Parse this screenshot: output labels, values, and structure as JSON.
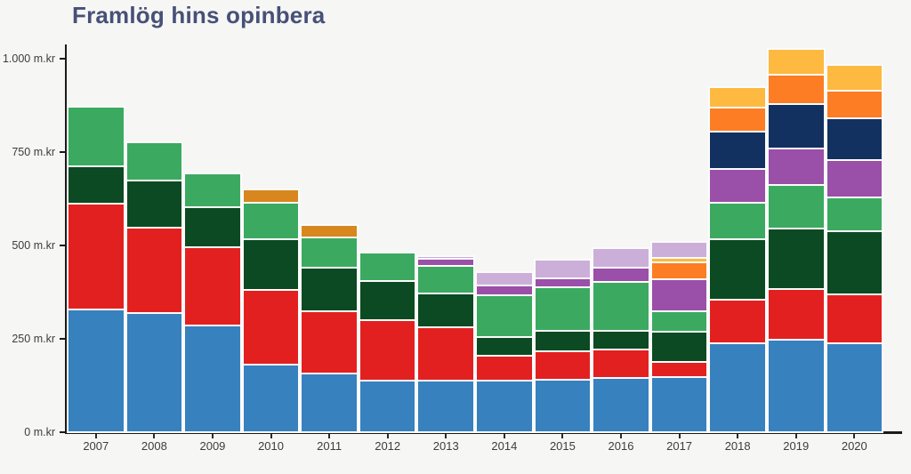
{
  "page": {
    "background_color": "#F6F6F5",
    "axis_color": "#1A1A1A",
    "tick_label_color": "#3C3C3C",
    "title_color": "#475077"
  },
  "chart_data": {
    "type": "bar",
    "stacked": true,
    "title": "Framlög hins opinbera",
    "unit": "m.kr",
    "grid": false,
    "legend_position": "none",
    "xlabel": "",
    "ylabel": "",
    "ylim": [
      0,
      1062
    ],
    "categories": [
      "2007",
      "2008",
      "2009",
      "2010",
      "2011",
      "2012",
      "2013",
      "2014",
      "2015",
      "2016",
      "2017",
      "2018",
      "2019",
      "2020"
    ],
    "y_axis": {
      "ticks": [
        {
          "value": 0,
          "label": "0 m.kr"
        },
        {
          "value": 250,
          "label": "250 m.kr"
        },
        {
          "value": 500,
          "label": "500 m.kr"
        },
        {
          "value": 750,
          "label": "750 m.kr"
        },
        {
          "value": 1000,
          "label": "1.000 m.kr"
        }
      ]
    },
    "series": [
      {
        "name": "blue",
        "color": "#3781BE",
        "values": [
          328,
          318,
          286,
          181,
          157,
          139,
          138,
          139,
          141,
          145,
          148,
          238,
          248,
          238
        ]
      },
      {
        "name": "red",
        "color": "#E32020",
        "values": [
          284,
          230,
          210,
          201,
          168,
          161,
          144,
          66,
          76,
          76,
          41,
          117,
          135,
          131
        ]
      },
      {
        "name": "dark-green",
        "color": "#0B4A22",
        "values": [
          99,
          126,
          107,
          134,
          115,
          105,
          89,
          51,
          55,
          51,
          81,
          161,
          163,
          169
        ]
      },
      {
        "name": "green",
        "color": "#3BAA60",
        "values": [
          160,
          102,
          90,
          99,
          82,
          75,
          73,
          111,
          117,
          130,
          55,
          98,
          115,
          91
        ]
      },
      {
        "name": "ochre",
        "color": "#D8861E",
        "values": [
          0,
          0,
          0,
          34,
          34,
          0,
          0,
          0,
          0,
          0,
          0,
          0,
          0,
          0
        ]
      },
      {
        "name": "purple",
        "color": "#9A4FA8",
        "values": [
          0,
          0,
          0,
          0,
          0,
          0,
          20,
          27,
          24,
          39,
          84,
          92,
          98,
          100
        ]
      },
      {
        "name": "navy",
        "color": "#123160",
        "values": [
          0,
          0,
          0,
          0,
          0,
          0,
          0,
          0,
          0,
          0,
          0,
          100,
          120,
          111
        ]
      },
      {
        "name": "orange",
        "color": "#FC7D23",
        "values": [
          0,
          0,
          0,
          0,
          0,
          0,
          0,
          0,
          0,
          0,
          47,
          64,
          78,
          75
        ]
      },
      {
        "name": "yellow",
        "color": "#FDB940",
        "values": [
          0,
          0,
          0,
          0,
          0,
          0,
          0,
          0,
          0,
          0,
          12,
          53,
          69,
          68
        ]
      },
      {
        "name": "lavender",
        "color": "#CBAFD9",
        "values": [
          0,
          0,
          0,
          0,
          0,
          0,
          7,
          35,
          50,
          53,
          42,
          0,
          0,
          0
        ]
      }
    ]
  }
}
